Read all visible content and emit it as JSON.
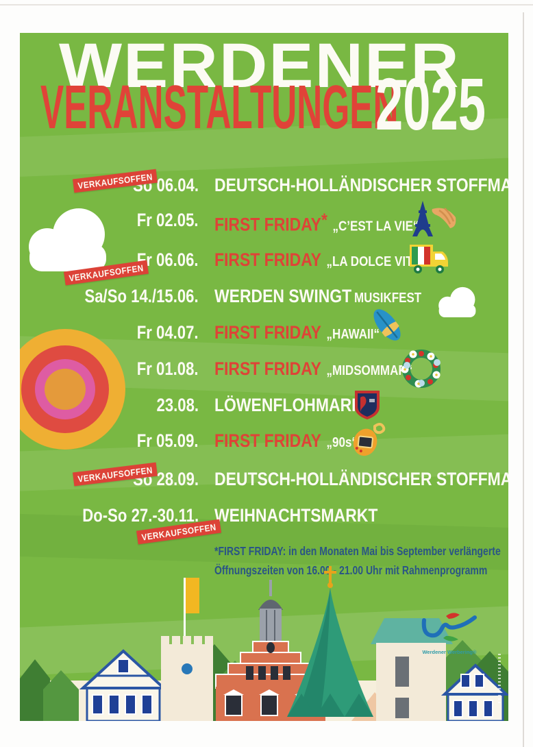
{
  "poster": {
    "title": {
      "line1": "WERDENER",
      "line2": "VERANSTALTUNGEN",
      "year": "2025"
    },
    "badge_label": "VERKAUFSOFFEN",
    "events": [
      {
        "date": "So 06.04.",
        "name": "DEUTSCH-HOLLÄNDISCHER STOFFMARKT"
      },
      {
        "date": "Fr 02.05.",
        "name_red": "FIRST FRIDAY",
        "star": "*",
        "subtitle": "„C’EST LA VIE“",
        "icons": [
          "eiffel-tower-icon",
          "croissant-icon"
        ]
      },
      {
        "date": "Fr 06.06.",
        "name_red": "FIRST FRIDAY",
        "subtitle": "„LA DOLCE VITA“",
        "icons": [
          "gelato-truck-icon"
        ]
      },
      {
        "date": "Sa/So 14./15.06.",
        "name": "WERDEN SWINGT",
        "suffix": "MUSIKFEST"
      },
      {
        "date": "Fr 04.07.",
        "name_red": "FIRST FRIDAY",
        "subtitle": "„HAWAII“",
        "icons": [
          "surfboard-icon"
        ]
      },
      {
        "date": "Fr 01.08.",
        "name_red": "FIRST FRIDAY",
        "subtitle": "„MIDSOMMAR“",
        "icons": [
          "midsommar-wreath-icon"
        ]
      },
      {
        "date": "23.08.",
        "name": "LÖWENFLOHMARKT",
        "icons": [
          "football-crest-icon"
        ]
      },
      {
        "date": "Fr 05.09.",
        "name_red": "FIRST FRIDAY",
        "subtitle": "„90s“",
        "icons": [
          "tamagotchi-icon"
        ]
      },
      {
        "date": "So 28.09.",
        "name": "DEUTSCH-HOLLÄNDISCHER STOFFMARKT"
      },
      {
        "date": "Do-So 27.-30.11.",
        "name": "WEIHNACHTSMARKT"
      }
    ],
    "footnote": {
      "line1": "*FIRST FRIDAY:  in den Monaten Mai bis September verlängerte",
      "line2": "Öffnungszeiten von 16.00 - 21.00 Uhr mit Rahmenprogramm"
    },
    "logo": {
      "name": "Werdener Werbering®"
    },
    "colors": {
      "background_green": "#79B843",
      "accent_red": "#DC4237",
      "text_white": "#FCFBF4",
      "footnote_blue": "#2A5585",
      "sun_yellow": "#EFAF33",
      "sun_red": "#DF4B41",
      "sun_pink": "#DE5CA3"
    }
  }
}
